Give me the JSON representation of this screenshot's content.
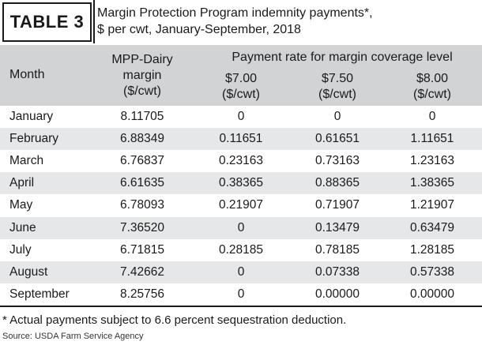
{
  "table_tag": "TABLE 3",
  "title_line1": "Margin Protection Program indemnity payments*,",
  "title_line2": "$ per cwt, January-September, 2018",
  "headers": {
    "month": "Month",
    "mpp_line1": "MPP-Dairy",
    "mpp_line2": "margin",
    "mpp_line3": "($/cwt)",
    "group": "Payment rate for margin coverage level",
    "rate1_line1": "$7.00",
    "rate1_line2": "($/cwt)",
    "rate2_line1": "$7.50",
    "rate2_line2": "($/cwt)",
    "rate3_line1": "$8.00",
    "rate3_line2": "($/cwt)"
  },
  "rows": [
    {
      "month": "January",
      "mpp": "8.11705",
      "r1": "0",
      "r2": "0",
      "r3": "0"
    },
    {
      "month": "February",
      "mpp": "6.88349",
      "r1": "0.11651",
      "r2": "0.61651",
      "r3": "1.11651"
    },
    {
      "month": "March",
      "mpp": "6.76837",
      "r1": "0.23163",
      "r2": "0.73163",
      "r3": "1.23163"
    },
    {
      "month": "April",
      "mpp": "6.61635",
      "r1": "0.38365",
      "r2": "0.88365",
      "r3": "1.38365"
    },
    {
      "month": "May",
      "mpp": "6.78093",
      "r1": "0.21907",
      "r2": "0.71907",
      "r3": "1.21907"
    },
    {
      "month": "June",
      "mpp": "7.36520",
      "r1": "0",
      "r2": "0.13479",
      "r3": "0.63479"
    },
    {
      "month": "July",
      "mpp": "6.71815",
      "r1": "0.28185",
      "r2": "0.78185",
      "r3": "1.28185"
    },
    {
      "month": "August",
      "mpp": "7.42662",
      "r1": "0",
      "r2": "0.07338",
      "r3": "0.57338"
    },
    {
      "month": "September",
      "mpp": "8.25756",
      "r1": "0",
      "r2": "0.00000",
      "r3": "0.00000"
    }
  ],
  "footnote": "* Actual payments subject to 6.6 percent sequestration deduction.",
  "source": "Source: USDA Farm Service Agency",
  "colors": {
    "header_band": "#d2d3d5",
    "row_shade": "#e6e7e8",
    "text": "#1a1a1a"
  }
}
